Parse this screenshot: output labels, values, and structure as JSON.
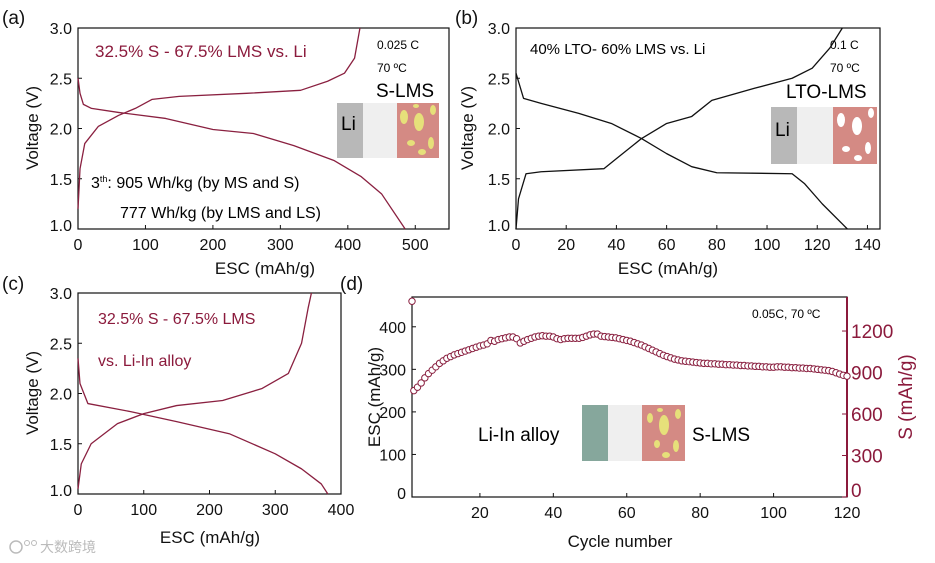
{
  "colors": {
    "curve": "#8a2040",
    "black": "#111111",
    "maroon": "#8b1a3c",
    "li": "#b8b8b8",
    "li_in": "#86a79c",
    "separator": "#efefef",
    "cathode": "#d48a84",
    "particle": "#e6e07a"
  },
  "watermark": "大数跨境",
  "chart_data": [
    {
      "type": "line",
      "panel_label": "(a)",
      "title": "32.5% S - 67.5% LMS vs. Li",
      "xlabel": "ESC (mAh/g)",
      "ylabel": "Voltage (V)",
      "xlim": [
        0,
        550
      ],
      "ylim": [
        1.0,
        3.0
      ],
      "xticks": [
        0,
        100,
        200,
        300,
        400,
        500
      ],
      "yticks": [
        1.0,
        1.5,
        2.0,
        2.5,
        3.0
      ],
      "annotations": {
        "rate": "0.025 C",
        "temp": "70 ºC",
        "cell": "S-LMS",
        "anode": "Li",
        "energy_prefix": "3",
        "energy_sup": "th",
        "energy1": ": 905 Wh/kg (by MS and S)",
        "energy2": "777 Wh/kg (by LMS and LS)"
      },
      "series": [
        {
          "name": "discharge",
          "x": [
            0,
            3,
            8,
            20,
            60,
            130,
            200,
            260,
            320,
            380,
            420,
            450,
            485
          ],
          "y": [
            2.5,
            2.35,
            2.24,
            2.2,
            2.16,
            2.1,
            1.99,
            1.95,
            1.83,
            1.68,
            1.52,
            1.35,
            1.0
          ]
        },
        {
          "name": "charge",
          "x": [
            0,
            3,
            10,
            30,
            60,
            85,
            110,
            150,
            250,
            330,
            370,
            395,
            410,
            418
          ],
          "y": [
            1.2,
            1.6,
            1.85,
            2.02,
            2.13,
            2.2,
            2.29,
            2.32,
            2.35,
            2.38,
            2.47,
            2.55,
            2.7,
            3.0
          ]
        }
      ]
    },
    {
      "type": "line",
      "panel_label": "(b)",
      "title": "40% LTO- 60% LMS vs. Li",
      "xlabel": "ESC (mAh/g)",
      "ylabel": "Voltage (V)",
      "xlim": [
        0,
        145
      ],
      "ylim": [
        1.0,
        3.0
      ],
      "xticks": [
        0,
        20,
        40,
        60,
        80,
        100,
        120,
        140
      ],
      "yticks": [
        1.0,
        1.5,
        2.0,
        2.5,
        3.0
      ],
      "annotations": {
        "rate": "0.1 C",
        "temp": "70 ºC",
        "cell": "LTO-LMS",
        "anode": "Li"
      },
      "series": [
        {
          "name": "discharge",
          "x": [
            0,
            3,
            10,
            25,
            38,
            50,
            60,
            70,
            80,
            110,
            115,
            122,
            130,
            132
          ],
          "y": [
            2.55,
            2.3,
            2.25,
            2.15,
            2.05,
            1.9,
            1.75,
            1.62,
            1.56,
            1.55,
            1.45,
            1.25,
            1.05,
            1.0
          ]
        },
        {
          "name": "charge",
          "x": [
            0,
            1,
            4,
            10,
            35,
            40,
            50,
            60,
            70,
            78,
            95,
            110,
            118,
            125,
            130
          ],
          "y": [
            1.0,
            1.3,
            1.55,
            1.57,
            1.6,
            1.7,
            1.9,
            2.05,
            2.12,
            2.28,
            2.4,
            2.5,
            2.6,
            2.8,
            3.0
          ]
        }
      ]
    },
    {
      "type": "line",
      "panel_label": "(c)",
      "title": "32.5% S - 67.5% LMS",
      "subtitle": "vs. Li-In alloy",
      "xlabel": "ESC (mAh/g)",
      "ylabel": "Voltage (V)",
      "xlim": [
        0,
        400
      ],
      "ylim": [
        1.0,
        3.0
      ],
      "xticks": [
        0,
        100,
        200,
        300,
        400
      ],
      "yticks": [
        1.0,
        1.5,
        2.0,
        2.5,
        3.0
      ],
      "series": [
        {
          "name": "discharge",
          "x": [
            0,
            3,
            15,
            80,
            150,
            230,
            300,
            340,
            370,
            380
          ],
          "y": [
            2.35,
            2.1,
            1.9,
            1.82,
            1.72,
            1.6,
            1.4,
            1.25,
            1.1,
            1.0
          ]
        },
        {
          "name": "charge",
          "x": [
            0,
            5,
            20,
            60,
            100,
            150,
            220,
            280,
            320,
            340,
            350,
            355
          ],
          "y": [
            1.05,
            1.3,
            1.5,
            1.7,
            1.8,
            1.88,
            1.93,
            2.05,
            2.2,
            2.5,
            2.85,
            3.0
          ]
        }
      ]
    },
    {
      "type": "scatter",
      "panel_label": "(d)",
      "xlabel": "Cycle number",
      "ylabel": "ESC (mAh/g)",
      "ylabel_right": "S  (mAh/g)",
      "xlim": [
        1.5,
        120
      ],
      "ylim": [
        0,
        470
      ],
      "ylim_right": [
        0,
        1446
      ],
      "xticks": [
        20,
        40,
        60,
        80,
        100,
        120
      ],
      "yticks": [
        0,
        100,
        200,
        300,
        400
      ],
      "yticks_right": [
        0,
        300,
        600,
        900,
        1200
      ],
      "annotations": {
        "condition": "0.05C, 70 ºC",
        "anode": "Li-In alloy",
        "cathode": "S-LMS"
      },
      "series": [
        {
          "name": "ESC",
          "x_start": 1,
          "y": [
            460,
            250,
            258,
            268,
            280,
            290,
            298,
            306,
            314,
            320,
            326,
            330,
            334,
            337,
            340,
            343,
            346,
            349,
            352,
            355,
            357,
            360,
            368,
            366,
            370,
            372,
            374,
            376,
            376,
            372,
            362,
            366,
            370,
            373,
            376,
            378,
            379,
            378,
            378,
            376,
            372,
            370,
            372,
            373,
            373,
            373,
            373,
            375,
            378,
            381,
            383,
            383,
            378,
            377,
            376,
            375,
            374,
            372,
            370,
            368,
            366,
            363,
            360,
            357,
            353,
            349,
            345,
            341,
            337,
            333,
            330,
            327,
            324,
            322,
            320,
            319,
            318,
            317,
            316,
            315,
            314,
            314,
            313,
            313,
            312,
            312,
            311,
            311,
            310,
            310,
            309,
            309,
            308,
            308,
            307,
            307,
            306,
            306,
            305,
            305,
            306,
            306,
            305,
            305,
            304,
            304,
            303,
            303,
            302,
            302,
            301,
            300,
            299,
            298,
            297,
            295,
            292,
            289,
            286,
            284
          ]
        }
      ]
    }
  ]
}
